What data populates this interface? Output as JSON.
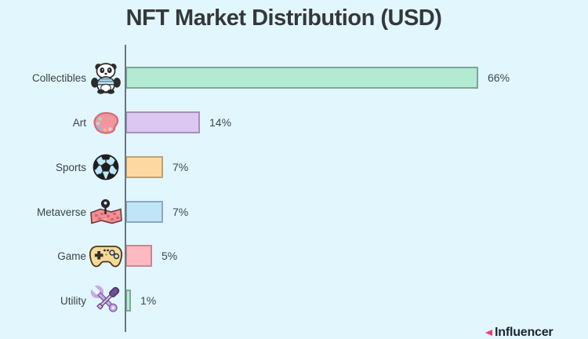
{
  "page": {
    "background_color": "#e2f6fe"
  },
  "chart_data": {
    "type": "bar",
    "orientation": "horizontal",
    "title": "NFT Market Distribution (USD)",
    "categories": [
      "Collectibles",
      "Art",
      "Sports",
      "Metaverse",
      "Game",
      "Utility"
    ],
    "values": [
      66,
      14,
      7,
      7,
      5,
      1
    ],
    "value_labels": [
      "66%",
      "14%",
      "7%",
      "7%",
      "5%",
      "1%"
    ],
    "unit": "%",
    "xlim": [
      0,
      100
    ],
    "grid": false,
    "legend": false,
    "bar_colors": [
      "#b2ead2",
      "#dcc7f0",
      "#fdd9a1",
      "#c0e5f8",
      "#ffb9c1",
      "#b6ecd6"
    ],
    "bar_border_colors": [
      "#7fa695",
      "#a58fc0",
      "#bfa172",
      "#88a9bf",
      "#c48a94",
      "#7fa998"
    ],
    "category_icons": [
      "panda-icon",
      "paint-palette-icon",
      "soccer-ball-icon",
      "treasure-map-icon",
      "game-controller-icon",
      "crossed-tools-icon"
    ],
    "axis_color": "#68787f",
    "title_color": "#34383c"
  },
  "watermark": {
    "label": "Influencer",
    "logo_color": "#ee3e72"
  }
}
